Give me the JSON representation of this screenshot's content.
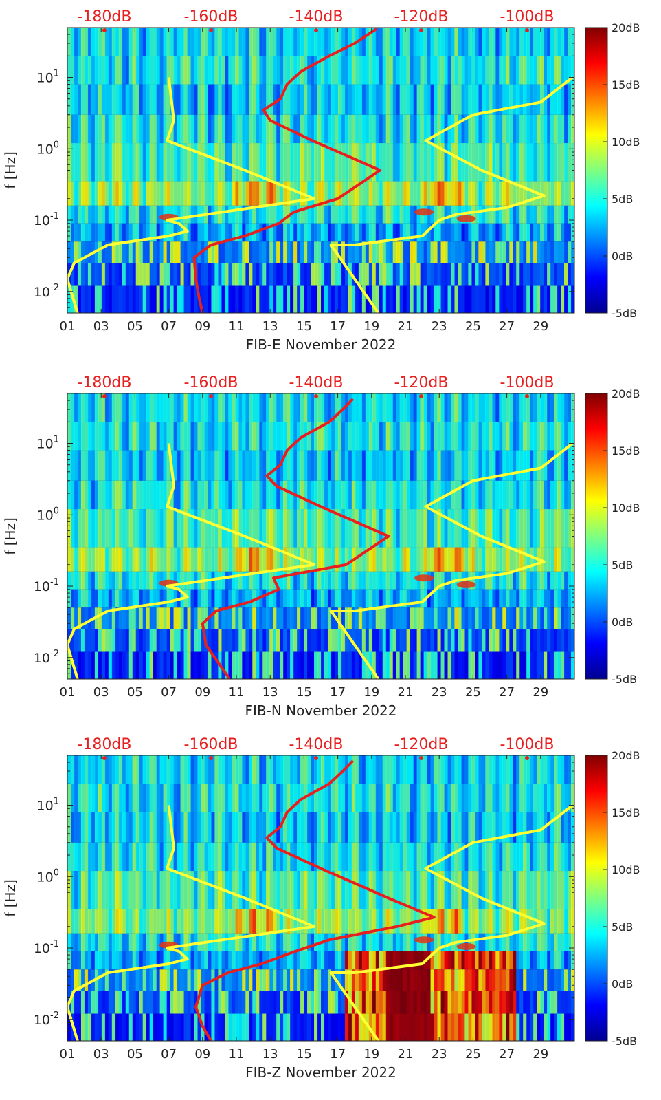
{
  "colors": {
    "noise_model_low": "#ffff33",
    "noise_model_high": "#e81f1f",
    "top_axis_labels": "#e81f1f",
    "background_field": "#00008f"
  },
  "chart_data": [
    {
      "type": "heatmap",
      "xlabel": "FIB-E November 2022",
      "ylabel": "f [Hz]",
      "x_ticks": [
        "01",
        "03",
        "05",
        "07",
        "09",
        "11",
        "13",
        "15",
        "17",
        "19",
        "21",
        "23",
        "25",
        "27",
        "29"
      ],
      "x_range": [
        1,
        31
      ],
      "y_scale": "log",
      "y_ticks": [
        "10-2",
        "10-1",
        "100",
        "101"
      ],
      "y_range": [
        0.005,
        50
      ],
      "top_axis_ticks": [
        "-180dB",
        "-160dB",
        "-140dB",
        "-120dB",
        "-100dB"
      ],
      "colorbar": {
        "ticks": [
          "20dB",
          "15dB",
          "10dB",
          "5dB",
          "0dB",
          "-5dB"
        ],
        "range": [
          -5,
          20
        ]
      },
      "series": [
        {
          "color": "yellow",
          "points": [
            [
              0.005,
              1.6
            ],
            [
              0.015,
              1.0
            ],
            [
              0.025,
              1.4
            ],
            [
              0.045,
              3.4
            ],
            [
              0.06,
              7.0
            ],
            [
              0.07,
              8.1
            ],
            [
              0.09,
              7.6
            ],
            [
              0.1,
              6.9
            ],
            [
              0.2,
              15.6
            ],
            [
              0.5,
              11.5
            ],
            [
              1.3,
              6.9
            ],
            [
              2.5,
              7.3
            ],
            [
              10,
              7.0
            ]
          ]
        },
        {
          "color": "yellow",
          "points": [
            [
              0.005,
              19.4
            ],
            [
              0.045,
              16.6
            ],
            [
              0.045,
              18.0
            ],
            [
              0.06,
              22.0
            ],
            [
              0.1,
              23.0
            ],
            [
              0.12,
              24.0
            ],
            [
              0.15,
              27.0
            ],
            [
              0.22,
              29.2
            ],
            [
              0.5,
              25.5
            ],
            [
              1.3,
              22.2
            ],
            [
              3,
              25.0
            ],
            [
              4.5,
              29.0
            ],
            [
              10,
              30.9
            ]
          ]
        },
        {
          "color": "red",
          "points": [
            [
              0.005,
              9.0
            ],
            [
              0.008,
              8.8
            ],
            [
              0.015,
              8.6
            ],
            [
              0.03,
              8.5
            ],
            [
              0.045,
              9.5
            ],
            [
              0.06,
              11.5
            ],
            [
              0.09,
              13.5
            ],
            [
              0.13,
              14.4
            ],
            [
              0.2,
              17.0
            ],
            [
              0.5,
              19.5
            ],
            [
              1.3,
              15.5
            ],
            [
              2.5,
              13.0
            ],
            [
              3.5,
              12.6
            ],
            [
              5,
              13.6
            ],
            [
              8,
              14.0
            ],
            [
              12,
              14.8
            ],
            [
              20,
              16.5
            ],
            [
              30,
              18.0
            ],
            [
              48,
              19.3
            ]
          ]
        }
      ]
    },
    {
      "type": "heatmap",
      "xlabel": "FIB-N November 2022",
      "ylabel": "f [Hz]",
      "x_ticks": [
        "01",
        "03",
        "05",
        "07",
        "09",
        "11",
        "13",
        "15",
        "17",
        "19",
        "21",
        "23",
        "25",
        "27",
        "29"
      ],
      "x_range": [
        1,
        31
      ],
      "y_scale": "log",
      "y_ticks": [
        "10-2",
        "10-1",
        "100",
        "101"
      ],
      "y_range": [
        0.005,
        50
      ],
      "top_axis_ticks": [
        "-180dB",
        "-160dB",
        "-140dB",
        "-120dB",
        "-100dB"
      ],
      "colorbar": {
        "ticks": [
          "20dB",
          "15dB",
          "10dB",
          "5dB",
          "0dB",
          "-5dB"
        ],
        "range": [
          -5,
          20
        ]
      },
      "series": [
        {
          "color": "yellow",
          "points": [
            [
              0.005,
              1.6
            ],
            [
              0.015,
              1.0
            ],
            [
              0.025,
              1.4
            ],
            [
              0.045,
              3.4
            ],
            [
              0.06,
              7.0
            ],
            [
              0.07,
              8.1
            ],
            [
              0.09,
              7.6
            ],
            [
              0.1,
              6.9
            ],
            [
              0.2,
              15.6
            ],
            [
              0.5,
              11.5
            ],
            [
              1.3,
              6.9
            ],
            [
              2.5,
              7.3
            ],
            [
              10,
              7.0
            ]
          ]
        },
        {
          "color": "yellow",
          "points": [
            [
              0.005,
              19.4
            ],
            [
              0.045,
              16.6
            ],
            [
              0.045,
              18.0
            ],
            [
              0.06,
              22.0
            ],
            [
              0.1,
              23.0
            ],
            [
              0.12,
              24.0
            ],
            [
              0.15,
              27.0
            ],
            [
              0.22,
              29.2
            ],
            [
              0.5,
              25.5
            ],
            [
              1.3,
              22.2
            ],
            [
              3,
              25.0
            ],
            [
              4.5,
              29.0
            ],
            [
              10,
              30.9
            ]
          ]
        },
        {
          "color": "red",
          "points": [
            [
              0.005,
              10.6
            ],
            [
              0.008,
              10.0
            ],
            [
              0.015,
              9.2
            ],
            [
              0.03,
              9.0
            ],
            [
              0.045,
              9.8
            ],
            [
              0.06,
              11.8
            ],
            [
              0.09,
              13.5
            ],
            [
              0.13,
              13.2
            ],
            [
              0.2,
              17.5
            ],
            [
              0.5,
              20.0
            ],
            [
              1.3,
              16.0
            ],
            [
              2.5,
              13.4
            ],
            [
              3.5,
              12.8
            ],
            [
              5,
              13.6
            ],
            [
              8,
              14.0
            ],
            [
              12,
              14.8
            ],
            [
              20,
              16.5
            ],
            [
              30,
              17.3
            ],
            [
              42,
              17.9
            ]
          ]
        }
      ]
    },
    {
      "type": "heatmap",
      "xlabel": "FIB-Z November 2022",
      "ylabel": "f [Hz]",
      "x_ticks": [
        "01",
        "03",
        "05",
        "07",
        "09",
        "11",
        "13",
        "15",
        "17",
        "19",
        "21",
        "23",
        "25",
        "27",
        "29"
      ],
      "x_range": [
        1,
        31
      ],
      "y_scale": "log",
      "y_ticks": [
        "10-2",
        "10-1",
        "100",
        "101"
      ],
      "y_range": [
        0.005,
        50
      ],
      "top_axis_ticks": [
        "-180dB",
        "-160dB",
        "-140dB",
        "-120dB",
        "-100dB"
      ],
      "colorbar": {
        "ticks": [
          "20dB",
          "15dB",
          "10dB",
          "5dB",
          "0dB",
          "-5dB"
        ],
        "range": [
          -5,
          20
        ]
      },
      "series": [
        {
          "color": "yellow",
          "points": [
            [
              0.005,
              1.6
            ],
            [
              0.015,
              1.0
            ],
            [
              0.025,
              1.4
            ],
            [
              0.045,
              3.4
            ],
            [
              0.06,
              7.0
            ],
            [
              0.07,
              8.1
            ],
            [
              0.09,
              7.6
            ],
            [
              0.1,
              6.9
            ],
            [
              0.2,
              15.6
            ],
            [
              0.5,
              11.5
            ],
            [
              1.3,
              6.9
            ],
            [
              2.5,
              7.3
            ],
            [
              10,
              7.0
            ]
          ]
        },
        {
          "color": "yellow",
          "points": [
            [
              0.005,
              19.4
            ],
            [
              0.045,
              16.6
            ],
            [
              0.045,
              18.0
            ],
            [
              0.06,
              22.0
            ],
            [
              0.1,
              23.0
            ],
            [
              0.12,
              24.0
            ],
            [
              0.15,
              27.0
            ],
            [
              0.22,
              29.2
            ],
            [
              0.5,
              25.5
            ],
            [
              1.3,
              22.2
            ],
            [
              3,
              25.0
            ],
            [
              4.5,
              29.0
            ],
            [
              10,
              30.9
            ]
          ]
        },
        {
          "color": "red",
          "points": [
            [
              0.005,
              9.5
            ],
            [
              0.008,
              9.0
            ],
            [
              0.015,
              8.6
            ],
            [
              0.03,
              9.0
            ],
            [
              0.045,
              10.5
            ],
            [
              0.06,
              12.5
            ],
            [
              0.09,
              14.5
            ],
            [
              0.13,
              16.5
            ],
            [
              0.2,
              20.5
            ],
            [
              0.27,
              22.7
            ],
            [
              0.5,
              20.0
            ],
            [
              1.3,
              16.0
            ],
            [
              2.5,
              13.4
            ],
            [
              3.5,
              12.8
            ],
            [
              5,
              13.6
            ],
            [
              8,
              14.0
            ],
            [
              12,
              14.8
            ],
            [
              20,
              16.5
            ],
            [
              30,
              17.3
            ],
            [
              42,
              17.9
            ]
          ]
        }
      ]
    }
  ]
}
